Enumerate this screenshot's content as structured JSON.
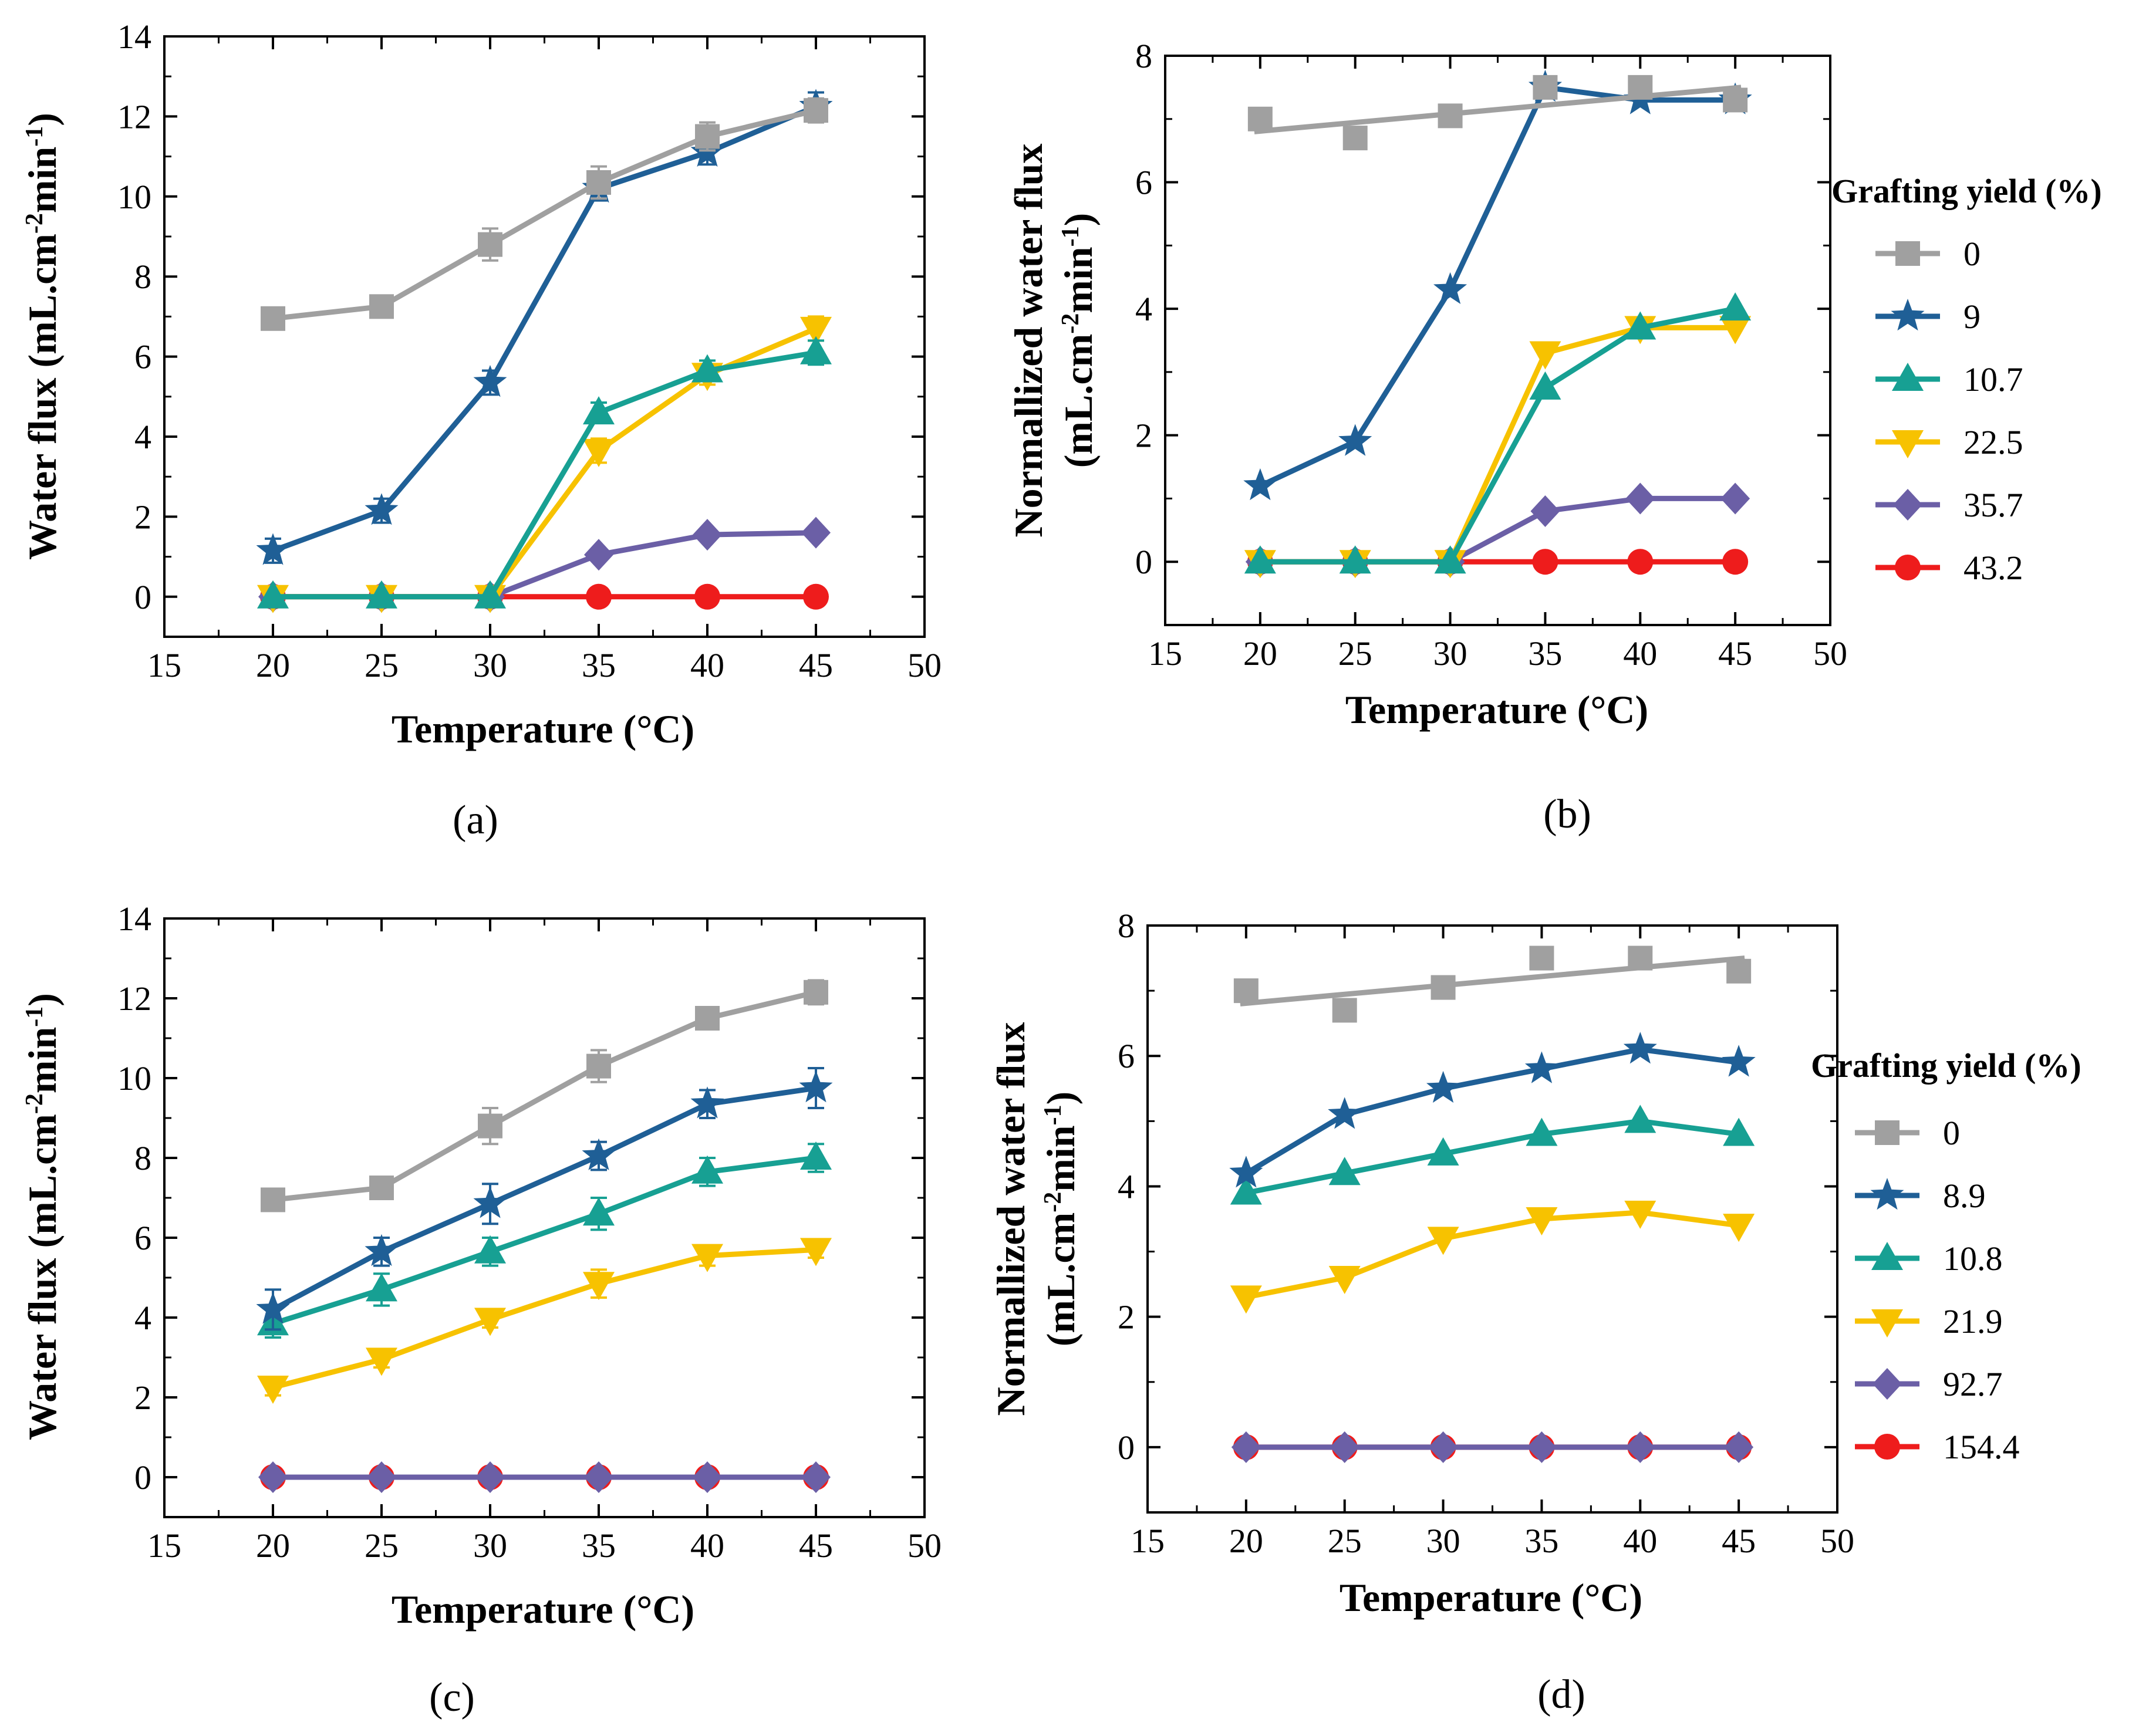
{
  "figure": {
    "panels": [
      "a",
      "b",
      "c",
      "d"
    ]
  },
  "chart_data": [
    {
      "id": "a",
      "type": "line",
      "panel_label": "(a)",
      "xlabel": "Temperature (°C)",
      "ylabel": "Water flux (mL.cm-2min-1)",
      "ylabel_parts": [
        "Water flux (mL.cm",
        "-2",
        "min",
        "-1",
        ")"
      ],
      "xlim": [
        15,
        50
      ],
      "ylim": [
        -1,
        14
      ],
      "xticks": [
        15,
        20,
        25,
        30,
        35,
        40,
        45,
        50
      ],
      "yticks": [
        0,
        2,
        4,
        6,
        8,
        10,
        12,
        14
      ],
      "x": [
        20,
        25,
        30,
        35,
        40,
        45
      ],
      "legend": null,
      "series": [
        {
          "name": "0",
          "color": "#a0a0a0",
          "marker": "square",
          "values": [
            6.95,
            7.25,
            8.8,
            10.35,
            11.5,
            12.15
          ],
          "errors": [
            0.15,
            0.15,
            0.4,
            0.4,
            0.35,
            0.3
          ]
        },
        {
          "name": "9",
          "color": "#1f5f96",
          "marker": "star",
          "values": [
            1.15,
            2.15,
            5.35,
            10.2,
            11.1,
            12.25
          ],
          "errors": [
            0.3,
            0.3,
            0.3,
            0.3,
            0.3,
            0.35
          ]
        },
        {
          "name": "10.7",
          "color": "#17a093",
          "marker": "triangle-up",
          "values": [
            0,
            0,
            0,
            4.6,
            5.65,
            6.1
          ],
          "errors": [
            0,
            0,
            0,
            0.25,
            0.25,
            0.3
          ]
        },
        {
          "name": "22.5",
          "color": "#f7c200",
          "marker": "triangle-down",
          "values": [
            0,
            0,
            0,
            3.65,
            5.55,
            6.7
          ],
          "errors": [
            0,
            0,
            0,
            0.3,
            0.25,
            0.3
          ]
        },
        {
          "name": "35.7",
          "color": "#6b5fa6",
          "marker": "diamond",
          "values": [
            0,
            0,
            0,
            1.05,
            1.55,
            1.6
          ],
          "errors": [
            0,
            0,
            0,
            0,
            0,
            0
          ]
        },
        {
          "name": "43.2",
          "color": "#ee1c1c",
          "marker": "circle",
          "values": [
            0,
            0,
            0,
            0,
            0,
            0
          ],
          "errors": [
            0,
            0,
            0,
            0,
            0,
            0
          ]
        }
      ]
    },
    {
      "id": "b",
      "type": "line",
      "panel_label": "(b)",
      "xlabel": "Temperature (°C)",
      "ylabel_lines": [
        "Normallized water flux",
        "(mL.cm-2min-1)"
      ],
      "ylabel_parts_line2": [
        "(mL.cm",
        "-2",
        "min",
        "-1",
        ")"
      ],
      "xlim": [
        15,
        50
      ],
      "ylim": [
        -1,
        8
      ],
      "xticks": [
        15,
        20,
        25,
        30,
        35,
        40,
        45,
        50
      ],
      "yticks": [
        0,
        2,
        4,
        6,
        8
      ],
      "x": [
        20,
        25,
        30,
        35,
        40,
        45
      ],
      "legend": {
        "title": "Grafting yield (%)",
        "position": "right"
      },
      "series": [
        {
          "name": "0",
          "color": "#a0a0a0",
          "marker": "square",
          "fit_line": [
            6.8,
            7.5
          ],
          "values": [
            7.0,
            6.7,
            7.05,
            7.5,
            7.5,
            7.3
          ]
        },
        {
          "name": "9",
          "color": "#1f5f96",
          "marker": "star",
          "values": [
            1.2,
            1.9,
            4.3,
            7.5,
            7.3,
            7.3
          ]
        },
        {
          "name": "10.7",
          "color": "#17a093",
          "marker": "triangle-up",
          "values": [
            0,
            0,
            0,
            2.75,
            3.7,
            4.0
          ]
        },
        {
          "name": "22.5",
          "color": "#f7c200",
          "marker": "triangle-down",
          "values": [
            0,
            0,
            0,
            3.3,
            3.7,
            3.7
          ]
        },
        {
          "name": "35.7",
          "color": "#6b5fa6",
          "marker": "diamond",
          "values": [
            0,
            0,
            0,
            0.8,
            1.0,
            1.0
          ]
        },
        {
          "name": "43.2",
          "color": "#ee1c1c",
          "marker": "circle",
          "values": [
            0,
            0,
            0,
            0,
            0,
            0
          ]
        }
      ]
    },
    {
      "id": "c",
      "type": "line",
      "panel_label": "(c)",
      "xlabel": "Temperature (°C)",
      "ylabel": "Water flux (mL.cm-2min-1)",
      "ylabel_parts": [
        "Water flux (mL.cm",
        "-2",
        "min",
        "-1",
        ")"
      ],
      "xlim": [
        15,
        50
      ],
      "ylim": [
        -1,
        14
      ],
      "xticks": [
        15,
        20,
        25,
        30,
        35,
        40,
        45,
        50
      ],
      "yticks": [
        0,
        2,
        4,
        6,
        8,
        10,
        12,
        14
      ],
      "x": [
        20,
        25,
        30,
        35,
        40,
        45
      ],
      "legend": null,
      "series": [
        {
          "name": "0",
          "color": "#a0a0a0",
          "marker": "square",
          "values": [
            6.95,
            7.25,
            8.8,
            10.3,
            11.5,
            12.15
          ],
          "errors": [
            0.15,
            0.15,
            0.45,
            0.4,
            0.2,
            0.3
          ]
        },
        {
          "name": "8.9",
          "color": "#1f5f96",
          "marker": "star",
          "values": [
            4.2,
            5.65,
            6.85,
            8.05,
            9.35,
            9.75
          ],
          "errors": [
            0.5,
            0.35,
            0.5,
            0.35,
            0.35,
            0.5
          ]
        },
        {
          "name": "10.8",
          "color": "#17a093",
          "marker": "triangle-up",
          "values": [
            3.85,
            4.7,
            5.65,
            6.6,
            7.65,
            8.0
          ],
          "errors": [
            0.35,
            0.4,
            0.35,
            0.4,
            0.35,
            0.35
          ]
        },
        {
          "name": "21.9",
          "color": "#f7c200",
          "marker": "triangle-down",
          "values": [
            2.25,
            2.95,
            3.95,
            4.85,
            5.55,
            5.7
          ],
          "errors": [
            0.2,
            0.2,
            0.2,
            0.35,
            0.25,
            0.2
          ]
        },
        {
          "name": "92.7",
          "color": "#6b5fa6",
          "marker": "diamond",
          "values": [
            0,
            0,
            0,
            0,
            0,
            0
          ],
          "errors": [
            0,
            0,
            0,
            0,
            0,
            0
          ]
        },
        {
          "name": "154.4",
          "color": "#ee1c1c",
          "marker": "circle",
          "values": [
            0,
            0,
            0,
            0,
            0,
            0
          ],
          "errors": [
            0,
            0,
            0,
            0,
            0,
            0
          ]
        }
      ]
    },
    {
      "id": "d",
      "type": "line",
      "panel_label": "(d)",
      "xlabel": "Temperature (°C)",
      "ylabel_lines": [
        "Normallized water flux",
        "(mL.cm-2min-1)"
      ],
      "ylabel_parts_line2": [
        "(mL.cm",
        "-2",
        "min",
        "-1",
        ")"
      ],
      "xlim": [
        15,
        50
      ],
      "ylim": [
        -1,
        8
      ],
      "xticks": [
        15,
        20,
        25,
        30,
        35,
        40,
        45,
        50
      ],
      "yticks": [
        0,
        2,
        4,
        6,
        8
      ],
      "x": [
        20,
        25,
        30,
        35,
        40,
        45
      ],
      "legend": {
        "title": "Grafting yield (%)",
        "position": "right"
      },
      "series": [
        {
          "name": "0",
          "color": "#a0a0a0",
          "marker": "square",
          "fit_line": [
            6.8,
            7.5
          ],
          "values": [
            7.0,
            6.7,
            7.05,
            7.5,
            7.5,
            7.3
          ]
        },
        {
          "name": "8.9",
          "color": "#1f5f96",
          "marker": "star",
          "values": [
            4.2,
            5.1,
            5.5,
            5.8,
            6.1,
            5.9
          ]
        },
        {
          "name": "10.8",
          "color": "#17a093",
          "marker": "triangle-up",
          "values": [
            3.9,
            4.2,
            4.5,
            4.8,
            5.0,
            4.8
          ]
        },
        {
          "name": "21.9",
          "color": "#f7c200",
          "marker": "triangle-down",
          "values": [
            2.3,
            2.6,
            3.2,
            3.5,
            3.6,
            3.4
          ]
        },
        {
          "name": "92.7",
          "color": "#6b5fa6",
          "marker": "diamond",
          "values": [
            0,
            0,
            0,
            0,
            0,
            0
          ]
        },
        {
          "name": "154.4",
          "color": "#ee1c1c",
          "marker": "circle",
          "values": [
            0,
            0,
            0,
            0,
            0,
            0
          ]
        }
      ]
    }
  ]
}
